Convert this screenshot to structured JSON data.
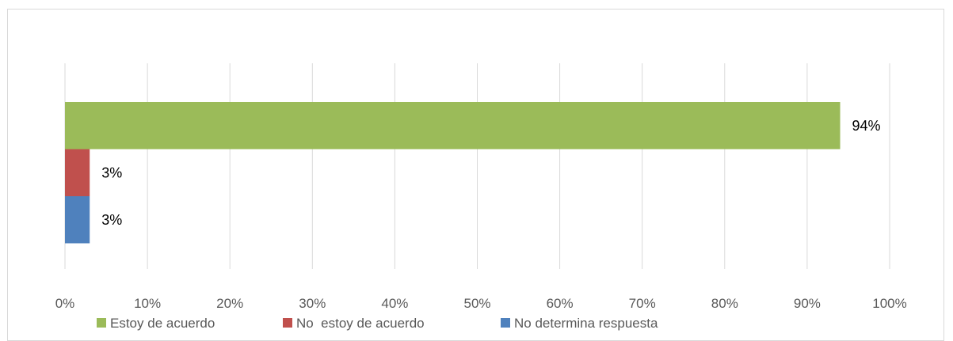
{
  "chart_data": {
    "type": "bar",
    "orientation": "horizontal",
    "title": "",
    "xlabel": "",
    "ylabel": "",
    "xlim": [
      0,
      100
    ],
    "x_ticks": [
      "0%",
      "10%",
      "20%",
      "30%",
      "40%",
      "50%",
      "60%",
      "70%",
      "80%",
      "90%",
      "100%"
    ],
    "grid": true,
    "legend_position": "bottom",
    "series": [
      {
        "name": "Estoy de acuerdo",
        "value": 94,
        "label": "94%",
        "color": "#9bbb59"
      },
      {
        "name": "No  estoy de acuerdo",
        "value": 3,
        "label": "3%",
        "color": "#c0504d"
      },
      {
        "name": "No determina respuesta",
        "value": 3,
        "label": "3%",
        "color": "#4f81bd"
      }
    ]
  }
}
